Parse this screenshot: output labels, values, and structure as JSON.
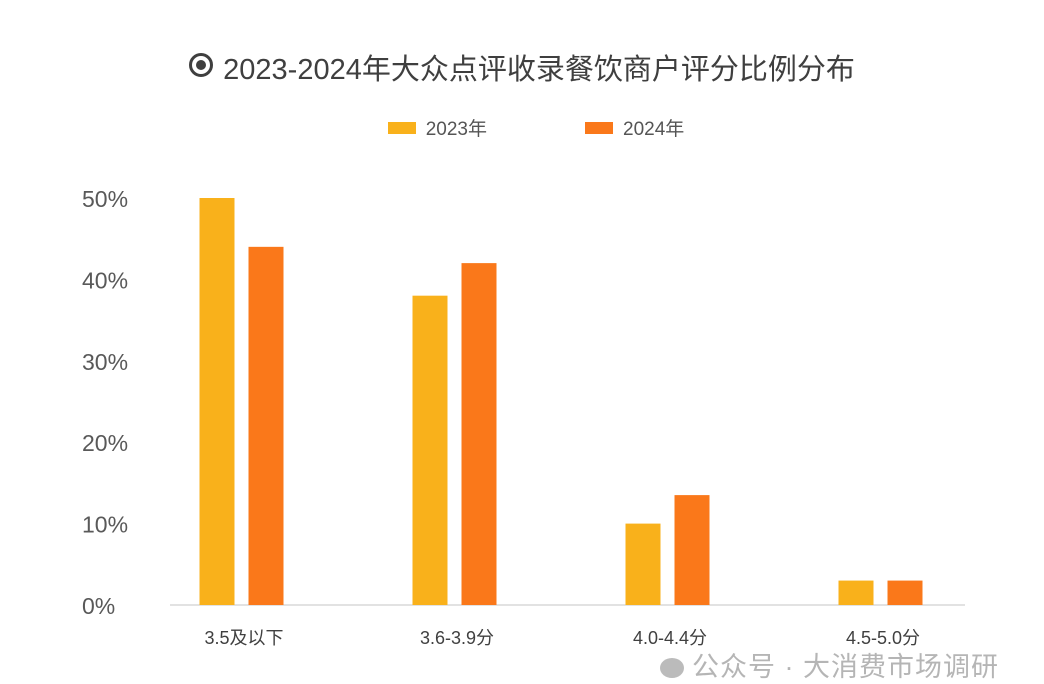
{
  "chart_data": {
    "type": "bar",
    "title": "2023-2024年大众点评收录餐饮商户评分比例分布",
    "categories": [
      "3.5及以下",
      "3.6-3.9分",
      "4.0-4.4分",
      "4.5-5.0分"
    ],
    "series": [
      {
        "name": "2023年",
        "color": "#F9B11B",
        "values": [
          50,
          38,
          10,
          3
        ]
      },
      {
        "name": "2024年",
        "color": "#FA781A",
        "values": [
          44,
          42,
          13.5,
          3
        ]
      }
    ],
    "yticks": [
      "0%",
      "10%",
      "20%",
      "30%",
      "40%",
      "50%"
    ],
    "ylim": [
      0,
      50
    ],
    "xlabel": "",
    "ylabel": "",
    "legend": "top-center",
    "grid": false
  },
  "watermark": "公众号 · 大消费市场调研"
}
